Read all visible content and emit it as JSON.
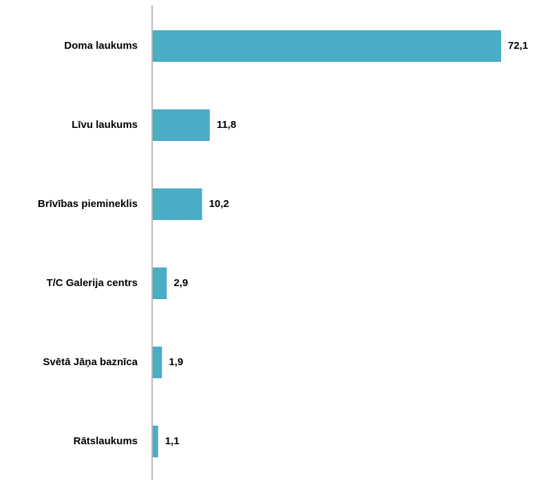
{
  "chart_data": {
    "type": "bar",
    "orientation": "horizontal",
    "categories": [
      "Doma laukums",
      "Līvu laukums",
      "Brīvības piemineklis",
      "T/C Galerija centrs",
      "Svētā Jāņa baznīca",
      "Rātslaukums"
    ],
    "values": [
      72.1,
      11.8,
      10.2,
      2.9,
      1.9,
      1.1
    ],
    "value_labels": [
      "72,1",
      "11,8",
      "10,2",
      "2,9",
      "1,9",
      "1,1"
    ],
    "color": "#4bacc6"
  }
}
